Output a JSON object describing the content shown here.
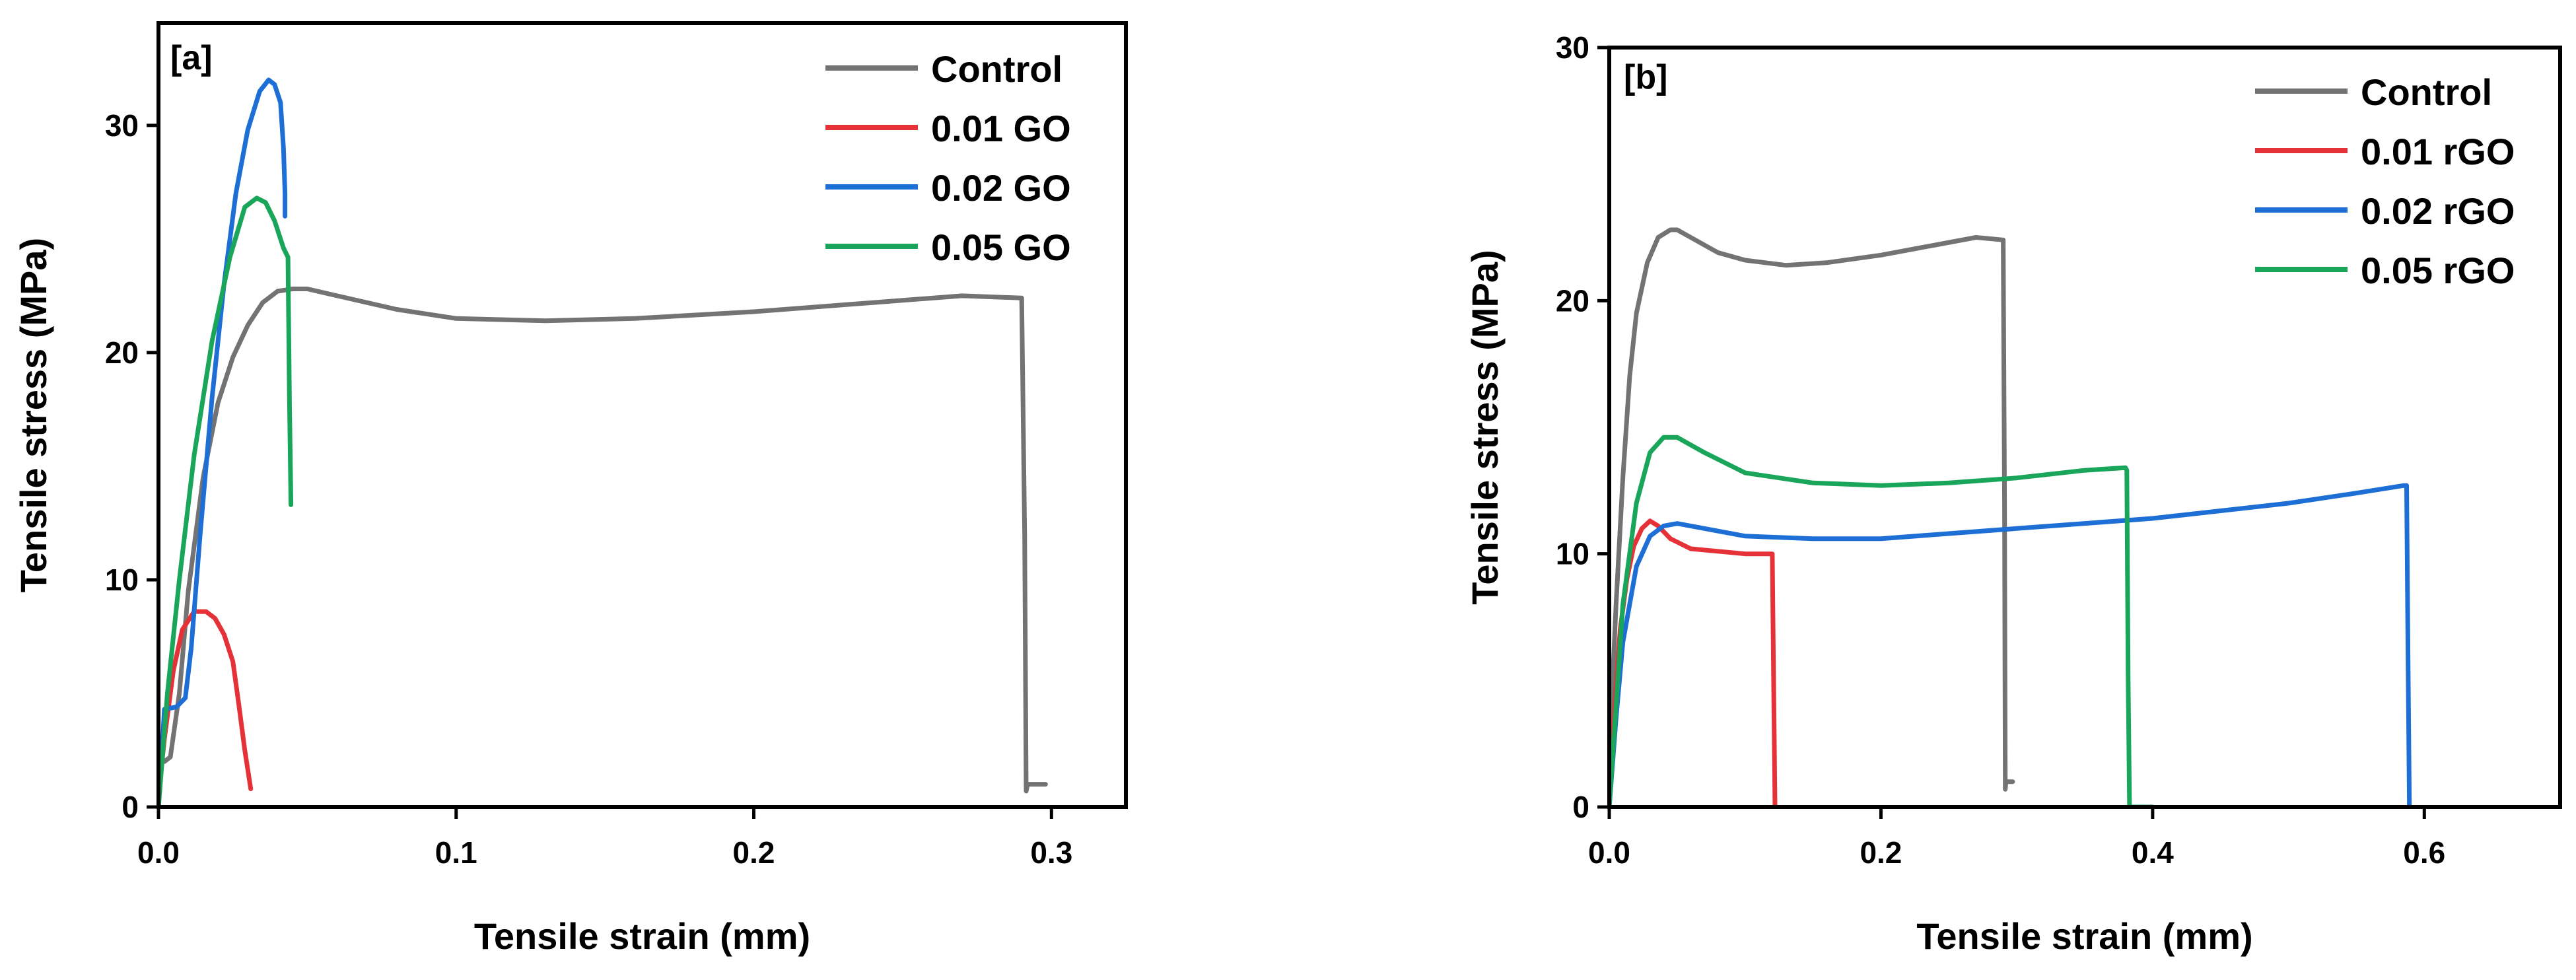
{
  "chart_data": [
    {
      "type": "line",
      "panel_label": "[a]",
      "xlabel": "Tensile strain (mm)",
      "ylabel": "Tensile stress (MPa)",
      "xlim": [
        0,
        0.325
      ],
      "ylim": [
        0,
        34.5
      ],
      "xticks": [
        0.0,
        0.1,
        0.2,
        0.3
      ],
      "xtick_labels": [
        "0.0",
        "0.1",
        "0.2",
        "0.3"
      ],
      "yticks": [
        0,
        10,
        20,
        30
      ],
      "ytick_labels": [
        "0",
        "10",
        "20",
        "30"
      ],
      "legend_position": "top-right",
      "series": [
        {
          "name": "Control",
          "color": "#737373",
          "x": [
            0.0,
            0.002,
            0.004,
            0.007,
            0.01,
            0.015,
            0.02,
            0.025,
            0.03,
            0.035,
            0.04,
            0.045,
            0.05,
            0.06,
            0.08,
            0.1,
            0.13,
            0.16,
            0.2,
            0.24,
            0.27,
            0.29,
            0.291,
            0.2915,
            0.292,
            0.298
          ],
          "y": [
            2.0,
            2.0,
            2.2,
            5.0,
            9.5,
            14.5,
            17.8,
            19.8,
            21.2,
            22.2,
            22.7,
            22.8,
            22.8,
            22.5,
            21.9,
            21.5,
            21.4,
            21.5,
            21.8,
            22.2,
            22.5,
            22.4,
            12.0,
            0.7,
            1.0,
            1.0
          ]
        },
        {
          "name": "0.01 GO",
          "color": "#e53238",
          "x": [
            0.0,
            0.002,
            0.005,
            0.008,
            0.012,
            0.016,
            0.019,
            0.022,
            0.025,
            0.027,
            0.029,
            0.031
          ],
          "y": [
            0.5,
            3.0,
            6.0,
            7.8,
            8.6,
            8.6,
            8.3,
            7.6,
            6.4,
            4.5,
            2.5,
            0.8
          ]
        },
        {
          "name": "0.02 GO",
          "color": "#1d6fd6",
          "x": [
            0.0,
            0.002,
            0.006,
            0.009,
            0.011,
            0.014,
            0.018,
            0.022,
            0.026,
            0.03,
            0.034,
            0.037,
            0.039,
            0.041,
            0.042,
            0.0425,
            0.0425
          ],
          "y": [
            0.0,
            4.3,
            4.4,
            4.8,
            7.0,
            12.0,
            18.0,
            23.0,
            27.0,
            29.8,
            31.5,
            32.0,
            31.8,
            31.0,
            29.0,
            27.0,
            26.0
          ]
        },
        {
          "name": "0.05 GO",
          "color": "#19a65a",
          "x": [
            0.0,
            0.003,
            0.007,
            0.012,
            0.018,
            0.024,
            0.029,
            0.033,
            0.036,
            0.039,
            0.042,
            0.0435,
            0.044,
            0.0445
          ],
          "y": [
            0.0,
            5.0,
            10.0,
            15.5,
            20.5,
            24.2,
            26.4,
            26.8,
            26.6,
            25.8,
            24.6,
            24.2,
            18.0,
            13.3
          ]
        }
      ]
    },
    {
      "type": "line",
      "panel_label": "[b]",
      "xlabel": "Tensile strain (mm)",
      "ylabel": "Tensile stress (MPa)",
      "xlim": [
        0,
        0.7
      ],
      "ylim": [
        0,
        30
      ],
      "xticks": [
        0.0,
        0.2,
        0.4,
        0.6
      ],
      "xtick_labels": [
        "0.0",
        "0.2",
        "0.4",
        "0.6"
      ],
      "yticks": [
        0,
        10,
        20,
        30
      ],
      "ytick_labels": [
        "0",
        "10",
        "20",
        "30"
      ],
      "legend_position": "top-right",
      "series": [
        {
          "name": "Control",
          "color": "#737373",
          "x": [
            0.0,
            0.005,
            0.01,
            0.015,
            0.02,
            0.028,
            0.036,
            0.045,
            0.05,
            0.06,
            0.08,
            0.1,
            0.13,
            0.16,
            0.2,
            0.24,
            0.27,
            0.29,
            0.291,
            0.2915,
            0.292,
            0.297
          ],
          "y": [
            2.0,
            8.0,
            13.0,
            17.0,
            19.5,
            21.5,
            22.5,
            22.8,
            22.8,
            22.5,
            21.9,
            21.6,
            21.4,
            21.5,
            21.8,
            22.2,
            22.5,
            22.4,
            12.0,
            0.7,
            1.0,
            1.0
          ]
        },
        {
          "name": "0.01 rGO",
          "color": "#e53238",
          "x": [
            0.0,
            0.004,
            0.008,
            0.013,
            0.018,
            0.024,
            0.03,
            0.036,
            0.045,
            0.06,
            0.08,
            0.1,
            0.12,
            0.121,
            0.122
          ],
          "y": [
            0.0,
            4.0,
            7.0,
            9.0,
            10.3,
            11.0,
            11.3,
            11.1,
            10.6,
            10.2,
            10.1,
            10.0,
            10.0,
            5.0,
            0.0
          ]
        },
        {
          "name": "0.02 rGO",
          "color": "#1d6fd6",
          "x": [
            0.0,
            0.005,
            0.01,
            0.02,
            0.03,
            0.04,
            0.05,
            0.07,
            0.1,
            0.15,
            0.2,
            0.3,
            0.4,
            0.5,
            0.55,
            0.585,
            0.587,
            0.588,
            0.589
          ],
          "y": [
            0.0,
            3.5,
            6.5,
            9.5,
            10.7,
            11.1,
            11.2,
            11.0,
            10.7,
            10.6,
            10.6,
            11.0,
            11.4,
            12.0,
            12.4,
            12.7,
            12.7,
            6.0,
            0.0
          ]
        },
        {
          "name": "0.05 rGO",
          "color": "#19a65a",
          "x": [
            0.0,
            0.005,
            0.01,
            0.02,
            0.03,
            0.04,
            0.05,
            0.07,
            0.1,
            0.15,
            0.2,
            0.25,
            0.3,
            0.35,
            0.38,
            0.381,
            0.382,
            0.383,
            0.4
          ],
          "y": [
            0.0,
            4.0,
            8.0,
            12.0,
            14.0,
            14.6,
            14.6,
            14.0,
            13.2,
            12.8,
            12.7,
            12.8,
            13.0,
            13.3,
            13.4,
            13.3,
            5.0,
            0.0,
            0.0
          ]
        }
      ]
    }
  ]
}
